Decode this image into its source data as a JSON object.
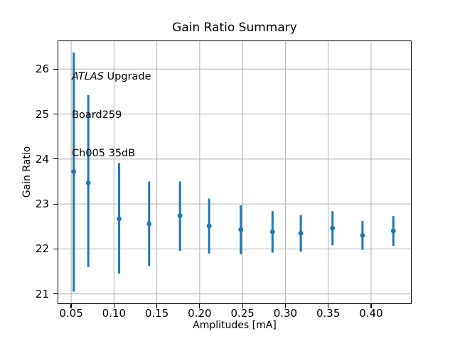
{
  "chart_data": {
    "type": "scatter",
    "subtype": "errorbar",
    "title": "Gain Ratio Summary",
    "xlabel": "Amplitudes [mA]",
    "ylabel": "Gain Ratio",
    "xlim": [
      0.035,
      0.4465
    ],
    "ylim": [
      20.79,
      26.62
    ],
    "xticks": [
      0.05,
      0.1,
      0.15,
      0.2,
      0.25,
      0.3,
      0.35,
      0.4
    ],
    "xtick_labels": [
      "0.05",
      "0.10",
      "0.15",
      "0.20",
      "0.25",
      "0.30",
      "0.35",
      "0.40"
    ],
    "yticks": [
      21,
      22,
      23,
      24,
      25,
      26
    ],
    "ytick_labels": [
      "21",
      "22",
      "23",
      "24",
      "25",
      "26"
    ],
    "grid": true,
    "legend": "none",
    "annotation": {
      "line1_italic": "ATLAS",
      "line1_rest": " Upgrade",
      "line2": "Board259",
      "line3": "Ch005 35dB"
    },
    "colors": {
      "series": "#1f77b4",
      "grid": "#b0b0b0",
      "spine": "#000000",
      "background": "#ffffff"
    },
    "points": [
      {
        "x": 0.053,
        "y": 23.72,
        "y_low": 21.05,
        "y_high": 26.37
      },
      {
        "x": 0.07,
        "y": 23.47,
        "y_low": 21.6,
        "y_high": 25.42
      },
      {
        "x": 0.106,
        "y": 22.67,
        "y_low": 21.45,
        "y_high": 23.91
      },
      {
        "x": 0.141,
        "y": 22.56,
        "y_low": 21.62,
        "y_high": 23.5
      },
      {
        "x": 0.177,
        "y": 22.74,
        "y_low": 21.96,
        "y_high": 23.5
      },
      {
        "x": 0.211,
        "y": 22.51,
        "y_low": 21.9,
        "y_high": 23.12
      },
      {
        "x": 0.248,
        "y": 22.43,
        "y_low": 21.88,
        "y_high": 22.97
      },
      {
        "x": 0.285,
        "y": 22.38,
        "y_low": 21.92,
        "y_high": 22.84
      },
      {
        "x": 0.318,
        "y": 22.35,
        "y_low": 21.94,
        "y_high": 22.75
      },
      {
        "x": 0.355,
        "y": 22.46,
        "y_low": 22.08,
        "y_high": 22.84
      },
      {
        "x": 0.39,
        "y": 22.3,
        "y_low": 21.98,
        "y_high": 22.62
      },
      {
        "x": 0.426,
        "y": 22.4,
        "y_low": 22.07,
        "y_high": 22.73
      }
    ]
  }
}
